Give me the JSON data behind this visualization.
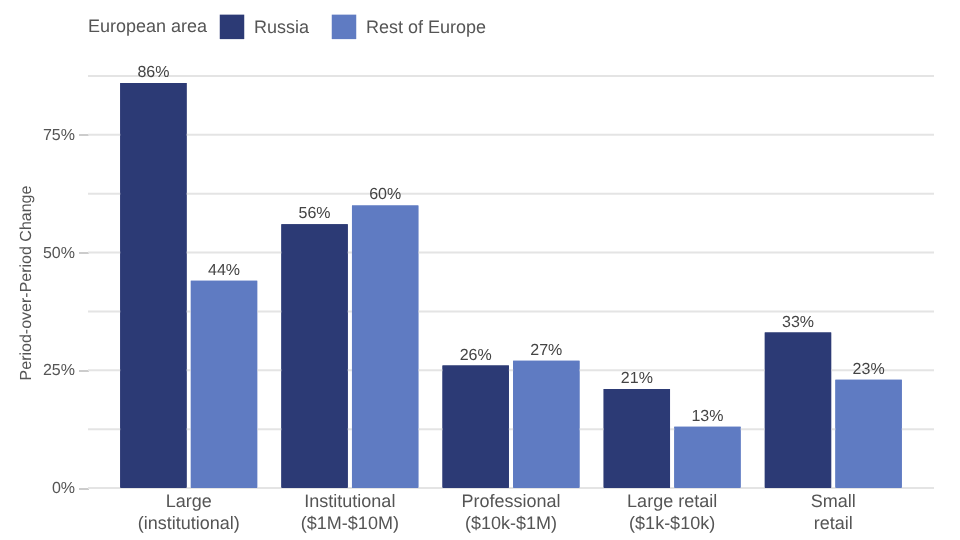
{
  "chart_data": {
    "type": "bar",
    "ylabel": "Period-over-Period Change",
    "legend_title": "European area",
    "legend": "top",
    "categories": [
      "Large\n(institutional)",
      "Institutional\n($1M-$10M)",
      "Professional\n($10k-$1M)",
      "Large retail\n($1k-$10k)",
      "Small\nretail"
    ],
    "series": [
      {
        "name": "Russia",
        "color": "#2c3a75",
        "values": [
          86,
          56,
          26,
          21,
          33
        ],
        "value_labels": [
          "86%",
          "56%",
          "26%",
          "21%",
          "33%"
        ]
      },
      {
        "name": "Rest of Europe",
        "color": "#5f7bc2",
        "values": [
          44,
          60,
          27,
          13,
          23
        ],
        "value_labels": [
          "44%",
          "60%",
          "27%",
          "13%",
          "23%"
        ]
      }
    ],
    "ylim": [
      0,
      87.5
    ],
    "yticks": [
      {
        "value": 0,
        "label": "0%"
      },
      {
        "value": 12.5,
        "label": null
      },
      {
        "value": 25,
        "label": "25%"
      },
      {
        "value": 37.5,
        "label": null
      },
      {
        "value": 50,
        "label": "50%"
      },
      {
        "value": 62.5,
        "label": null
      },
      {
        "value": 75,
        "label": "75%"
      },
      {
        "value": 87.5,
        "label": null
      }
    ],
    "grid": "y"
  }
}
